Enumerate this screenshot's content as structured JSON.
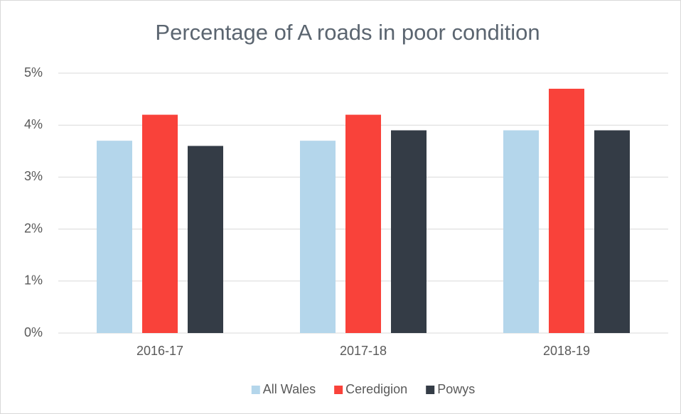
{
  "chart_data": {
    "type": "bar",
    "title": "Percentage of A roads in poor condition",
    "categories": [
      "2016-17",
      "2017-18",
      "2018-19"
    ],
    "series": [
      {
        "name": "All Wales",
        "color": "#b4d6eb",
        "values": [
          3.7,
          3.7,
          3.9
        ]
      },
      {
        "name": "Ceredigion",
        "color": "#f9423a",
        "values": [
          4.2,
          4.2,
          4.7
        ]
      },
      {
        "name": "Powys",
        "color": "#343c46",
        "values": [
          3.6,
          3.9,
          3.9
        ]
      }
    ],
    "ylim": [
      0,
      5
    ],
    "yticks": [
      {
        "value": 0,
        "label": "0%"
      },
      {
        "value": 1,
        "label": "1%"
      },
      {
        "value": 2,
        "label": "2%"
      },
      {
        "value": 3,
        "label": "3%"
      },
      {
        "value": 4,
        "label": "4%"
      },
      {
        "value": 5,
        "label": "5%"
      }
    ],
    "grid": true,
    "legend": "bottom"
  }
}
